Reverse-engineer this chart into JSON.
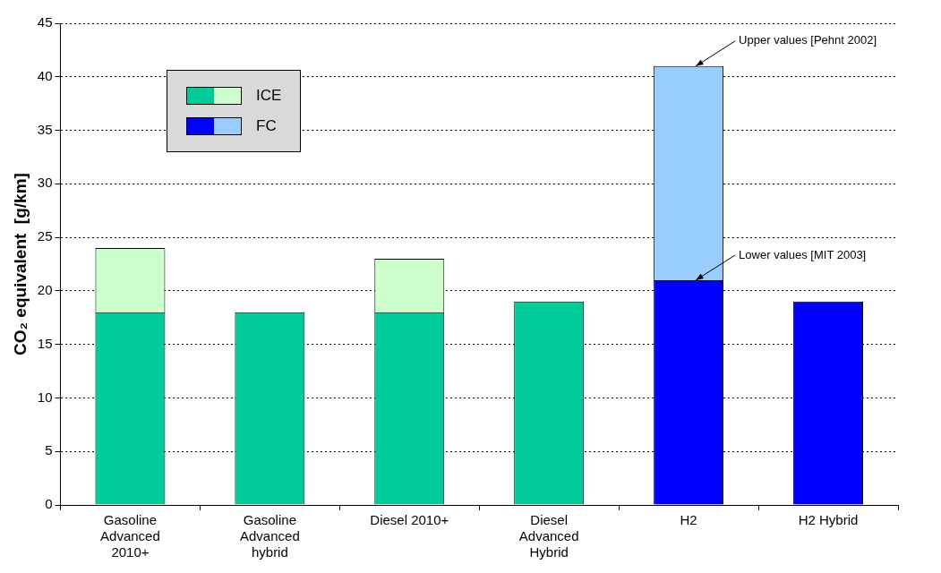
{
  "chart_data": {
    "type": "bar",
    "stacked": true,
    "ylabel": "CO₂ equivalent  [g/km]",
    "categories": [
      "Gasoline Advanced 2010+",
      "Gasoline Advanced hybrid",
      "Diesel 2010+",
      "Diesel Advanced Hybrid",
      "H2",
      "H2 Hybrid"
    ],
    "series": [
      {
        "name": "ICE",
        "color": "#00cc99",
        "values": [
          18,
          18,
          18,
          19,
          null,
          null
        ]
      },
      {
        "color": "#ccffcc",
        "values": [
          6,
          null,
          5,
          null,
          null,
          null
        ]
      },
      {
        "name": "FC",
        "color": "#0000ff",
        "values": [
          null,
          null,
          null,
          null,
          21,
          19
        ]
      },
      {
        "color": "#99ccff",
        "values": [
          null,
          null,
          null,
          null,
          20,
          null
        ]
      }
    ],
    "ylim": [
      0,
      45
    ],
    "yticks": [
      0,
      5,
      10,
      15,
      20,
      25,
      30,
      35,
      40,
      45
    ],
    "grid": "y",
    "legend": "top left",
    "annotations": [
      {
        "text": "Upper values [Pehnt 2002]",
        "x": "H2",
        "y": 41
      },
      {
        "text": "Lower values [MIT 2003]",
        "x": "H2",
        "y": 21
      }
    ]
  }
}
